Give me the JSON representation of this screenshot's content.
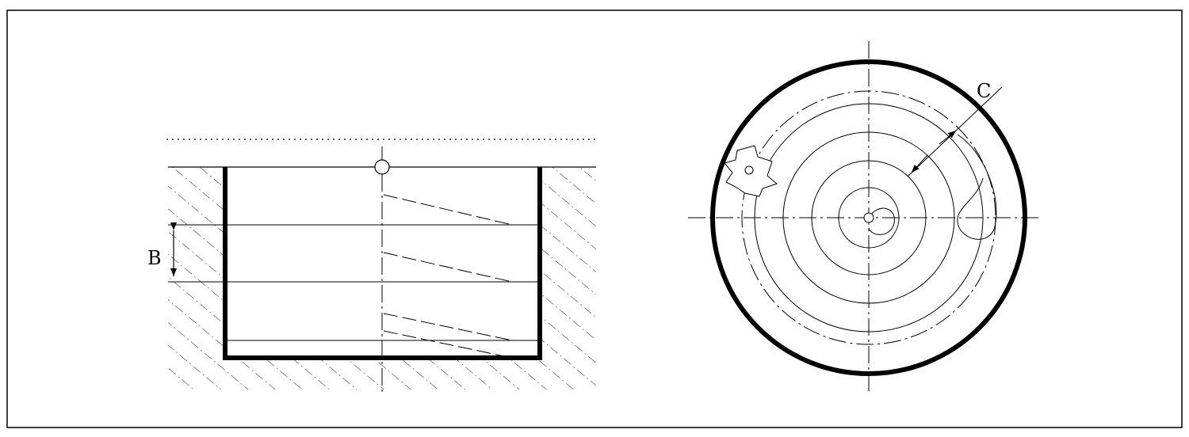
{
  "diagram": {
    "labels": {
      "b": "B",
      "c": "C"
    },
    "colors": {
      "ink": "#000000",
      "paper": "#ffffff"
    }
  }
}
